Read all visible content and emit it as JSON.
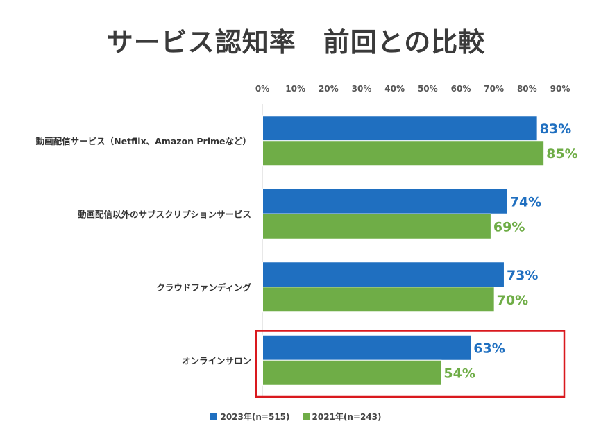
{
  "title": "サービス認知率　前回との比較",
  "colors": {
    "series1": "#1f6fc0",
    "series2": "#6fad47",
    "highlight": "#d9191e"
  },
  "chart_data": {
    "type": "bar",
    "orientation": "horizontal",
    "categories": [
      "動画配信サービス（Netflix、Amazon Primeなど）",
      "動画配信以外のサブスクリプションサービス",
      "クラウドファンディング",
      "オンラインサロン"
    ],
    "series": [
      {
        "name": "2023年(n=515)",
        "values": [
          83,
          74,
          73,
          63
        ]
      },
      {
        "name": "2021年(n=243)",
        "values": [
          85,
          69,
          70,
          54
        ]
      }
    ],
    "x_ticks": [
      "0%",
      "10%",
      "20%",
      "30%",
      "40%",
      "50%",
      "60%",
      "70%",
      "80%",
      "90%"
    ],
    "xlim": [
      0,
      90
    ],
    "value_suffix": "%",
    "grid": false,
    "legend_position": "bottom",
    "highlighted_category": "オンラインサロン"
  }
}
